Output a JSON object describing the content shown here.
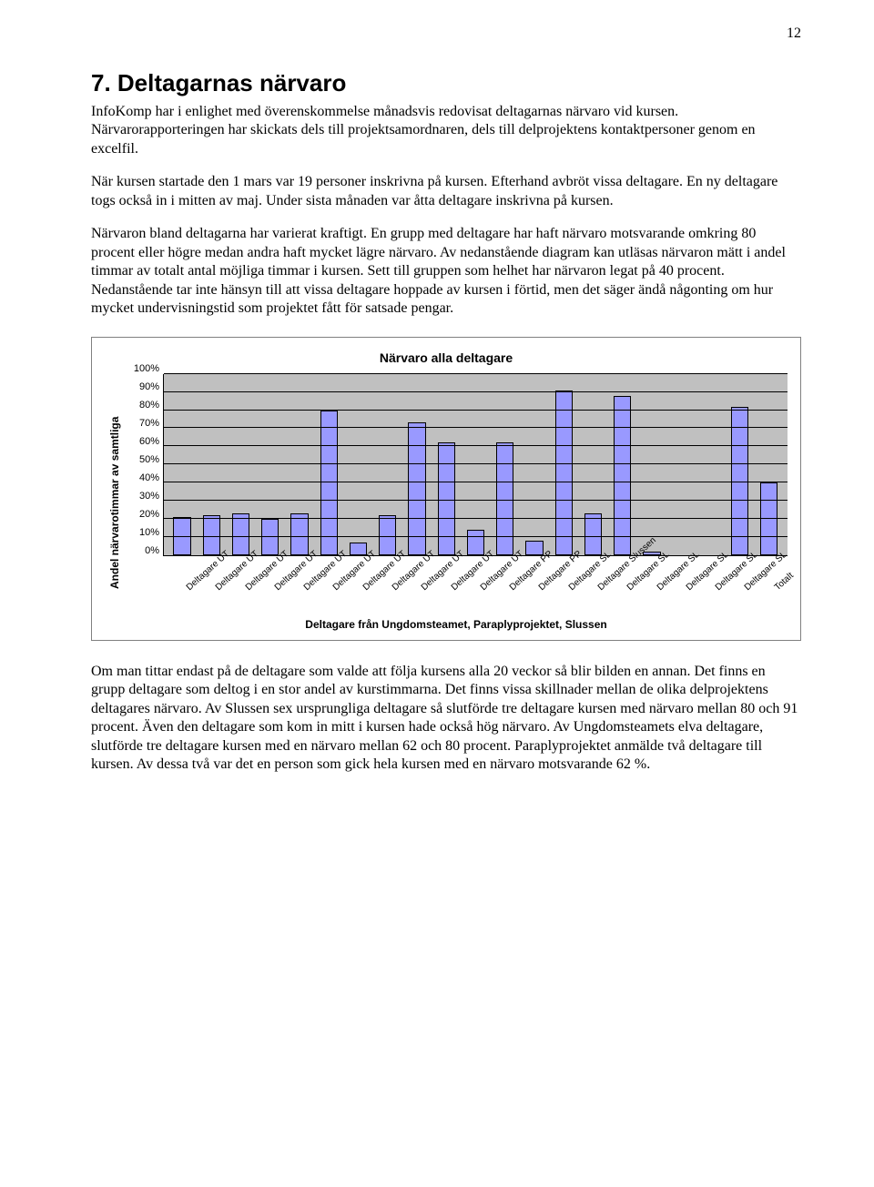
{
  "page_number": "12",
  "heading": "7. Deltagarnas närvaro",
  "paragraph1": "InfoKomp har i enlighet med överenskommelse månadsvis redovisat deltagarnas närvaro vid kursen. Närvarorapporteringen har skickats dels till projektsamordnaren, dels till delprojektens kontaktpersoner genom en excelfil.",
  "paragraph2": "När kursen startade den 1 mars var 19 personer inskrivna på  kursen. Efterhand avbröt vissa deltagare. En ny deltagare togs också in i mitten av maj. Under sista månaden var åtta deltagare inskrivna på kursen.",
  "paragraph3": "Närvaron bland deltagarna har varierat kraftigt. En grupp med deltagare har haft närvaro motsvarande omkring 80 procent eller högre medan andra haft mycket lägre närvaro. Av nedanstående diagram kan utläsas närvaron mätt i andel timmar av totalt antal möjliga timmar i kursen. Sett till gruppen som helhet har närvaron legat på 40 procent. Nedanstående tar inte hänsyn till att vissa deltagare hoppade av kursen i förtid, men det säger ändå någonting om hur mycket undervisningstid som projektet fått för satsade pengar.",
  "paragraph4": "Om man tittar endast på de deltagare som valde att följa kursens alla 20 veckor så blir bilden en annan. Det finns en grupp deltagare som deltog i en stor andel av kurstimmarna. Det finns vissa skillnader mellan de olika delprojektens deltagares närvaro. Av Slussen sex ursprungliga deltagare så slutförde tre deltagare kursen med närvaro mellan 80 och 91 procent. Även den deltagare som kom in mitt i kursen hade också hög närvaro. Av Ungdomsteamets elva deltagare, slutförde tre deltagare kursen med en närvaro mellan 62 och 80 procent. Paraplyprojektet anmälde två deltagare till kursen. Av dessa två var det en person som gick hela kursen med en närvaro motsvarande 62 %.",
  "chart": {
    "type": "bar",
    "title": "Närvaro alla deltagare",
    "y_label": "Andel närvarotimmar av samtliga",
    "x_label": "Deltagare från Ungdomsteamet, Paraplyprojektet, Slussen",
    "ylim": [
      0,
      100
    ],
    "ytick_step": 10,
    "y_ticks": [
      "0%",
      "10%",
      "20%",
      "30%",
      "40%",
      "50%",
      "60%",
      "70%",
      "80%",
      "90%",
      "100%"
    ],
    "bar_color": "#9999ff",
    "bar_border": "#000000",
    "grid_color": "#000000",
    "background_color": "#c0c0c0",
    "plot_background": "#c0c0c0",
    "categories": [
      "Deltagare UT",
      "Deltagare UT",
      "Deltagare UT",
      "Deltagare UT",
      "Deltagare UT",
      "Deltagare UT",
      "Deltagare UT",
      "Deltagare UT",
      "Deltagare UT",
      "Deltagare UT",
      "Deltagare UT",
      "Deltagare PP",
      "Deltagare PP",
      "Deltagare SL",
      "Deltagare Slussen",
      "Deltagare SL",
      "Deltagare SL",
      "Deltagare SL",
      "Deltagare SL",
      "Deltagare SL",
      "Totalt"
    ],
    "values": [
      21,
      22,
      23,
      20,
      23,
      80,
      7,
      22,
      73,
      62,
      14,
      62,
      8,
      91,
      23,
      88,
      2,
      0,
      0,
      82,
      40
    ],
    "title_fontsize": 14,
    "label_fontsize": 12,
    "tick_fontsize": 11
  }
}
